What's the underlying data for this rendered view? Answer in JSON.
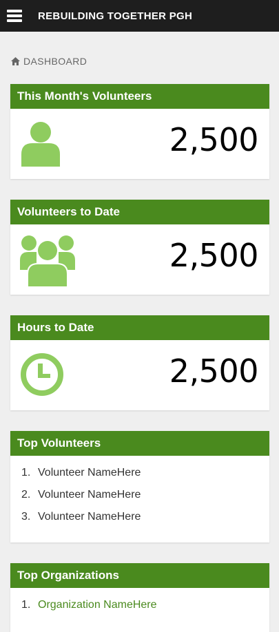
{
  "header": {
    "title": "REBUILDING TOGETHER PGH",
    "menu_icon": "hamburger-icon"
  },
  "breadcrumb": {
    "icon": "home-icon",
    "label": "DASHBOARD"
  },
  "colors": {
    "header_bg": "#1e1e1e",
    "accent": "#4a8a1e",
    "icon_green": "#8fcc5f"
  },
  "stats": [
    {
      "title": "This Month's Volunteers",
      "value": "2,500",
      "icon": "person-icon"
    },
    {
      "title": "Volunteers to Date",
      "value": "2,500",
      "icon": "group-icon"
    },
    {
      "title": "Hours to Date",
      "value": "2,500",
      "icon": "clock-icon"
    }
  ],
  "top_volunteers": {
    "title": "Top Volunteers",
    "items": [
      {
        "rank": "1.",
        "name": "Volunteer NameHere"
      },
      {
        "rank": "2.",
        "name": "Volunteer NameHere"
      },
      {
        "rank": "3.",
        "name": "Volunteer NameHere"
      }
    ]
  },
  "top_organizations": {
    "title": "Top Organizations",
    "items": [
      {
        "rank": "1.",
        "name": "Organization NameHere"
      }
    ]
  }
}
